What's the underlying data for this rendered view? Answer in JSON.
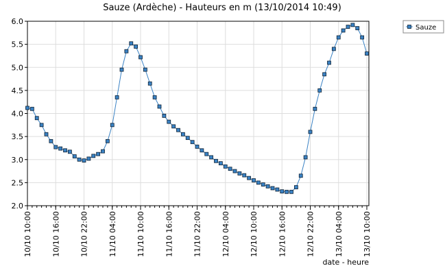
{
  "chart_data": {
    "type": "scatter-line",
    "title": "Sauze (Ardèche) - Hauteurs en m (13/10/2014 10:49)",
    "x_label": "date - heure",
    "categories": [
      "10/10 10:00",
      null,
      null,
      null,
      null,
      null,
      "10/10 16:00",
      null,
      null,
      null,
      null,
      null,
      "10/10 22:00",
      null,
      null,
      null,
      null,
      null,
      "11/10 04:00",
      null,
      null,
      null,
      null,
      null,
      "11/10 10:00",
      null,
      null,
      null,
      null,
      null,
      "11/10 16:00",
      null,
      null,
      null,
      null,
      null,
      "11/10 22:00",
      null,
      null,
      null,
      null,
      null,
      "12/10 04:00",
      null,
      null,
      null,
      null,
      null,
      "12/10 10:00",
      null,
      null,
      null,
      null,
      null,
      "12/10 16:00",
      null,
      null,
      null,
      null,
      null,
      "12/10 22:00",
      null,
      null,
      null,
      null,
      null,
      "13/10 04:00",
      null,
      null,
      null,
      null,
      null,
      "13/10 10:00"
    ],
    "series": [
      {
        "name": "Sauze",
        "color": "#3a82c4",
        "values": [
          4.12,
          4.1,
          3.9,
          3.75,
          3.55,
          3.4,
          3.27,
          3.24,
          3.2,
          3.17,
          3.07,
          3.0,
          2.98,
          3.02,
          3.08,
          3.12,
          3.18,
          3.4,
          3.75,
          4.35,
          4.95,
          5.35,
          5.52,
          5.45,
          5.22,
          4.95,
          4.65,
          4.35,
          4.15,
          3.95,
          3.82,
          3.72,
          3.64,
          3.55,
          3.47,
          3.38,
          3.28,
          3.2,
          3.12,
          3.05,
          2.97,
          2.92,
          2.85,
          2.8,
          2.75,
          2.7,
          2.66,
          2.6,
          2.55,
          2.5,
          2.46,
          2.42,
          2.38,
          2.35,
          2.31,
          2.3,
          2.3,
          2.4,
          2.65,
          3.05,
          3.6,
          4.1,
          4.5,
          4.85,
          5.1,
          5.4,
          5.65,
          5.8,
          5.88,
          5.92,
          5.85,
          5.65,
          5.3
        ]
      }
    ],
    "ylim": [
      2,
      6
    ],
    "yticks": [
      {
        "value": 2,
        "label": "2.0"
      },
      2.5,
      {
        "value": 3,
        "label": "3.0"
      },
      3.5,
      {
        "value": 4,
        "label": "4.0"
      },
      4.5,
      {
        "value": 5,
        "label": "5.0"
      },
      5.5,
      {
        "value": 6,
        "label": "6.0"
      }
    ],
    "grid": true,
    "legend": "top-right"
  }
}
